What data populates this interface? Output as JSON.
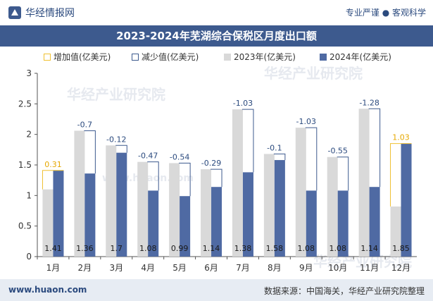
{
  "header": {
    "brand": "华经情报网",
    "tagline": "专业严谨 ● 客观科学"
  },
  "chart_data": {
    "type": "bar",
    "title": "2023-2024年芜湖综合保税区月度出口额",
    "categories": [
      "1月",
      "2月",
      "3月",
      "4月",
      "5月",
      "6月",
      "7月",
      "8月",
      "9月",
      "10月",
      "11月",
      "12月"
    ],
    "series": [
      {
        "name": "2023年(亿美元)",
        "values": [
          1.1,
          2.06,
          1.82,
          1.55,
          1.53,
          1.43,
          2.41,
          1.68,
          2.11,
          1.63,
          2.42,
          0.82
        ]
      },
      {
        "name": "2024年(亿美元)",
        "values": [
          1.41,
          1.36,
          1.7,
          1.08,
          0.99,
          1.14,
          1.38,
          1.58,
          1.08,
          1.08,
          1.14,
          1.85
        ]
      }
    ],
    "changes": [
      0.31,
      -0.7,
      -0.12,
      -0.47,
      -0.54,
      -0.29,
      -1.03,
      -0.1,
      -1.03,
      -0.55,
      -1.28,
      1.03
    ],
    "change_labels": [
      "0.31",
      "-0.7",
      "-0.12",
      "-0.47",
      "-0.54",
      "-0.29",
      "-1.03",
      "-0.1",
      "-1.03",
      "-0.55",
      "-1.28",
      "1.03"
    ],
    "value_labels_2024": [
      "1.41",
      "1.36",
      "1.7",
      "1.08",
      "0.99",
      "1.14",
      "1.38",
      "1.58",
      "1.08",
      "1.08",
      "1.14",
      "1.85"
    ],
    "legend": [
      "增加值(亿美元)",
      "减少值(亿美元)",
      "2023年(亿美元)",
      "2024年(亿美元)"
    ],
    "legend_position": "top",
    "ylim": [
      0,
      3
    ],
    "yticks": [
      "0",
      "0.5",
      "1",
      "1.5",
      "2",
      "2.5",
      "3"
    ],
    "grid": false,
    "colors": {
      "y2023": "#d9d9d9",
      "y2024": "#4f6aa3",
      "increase": "#f0c030",
      "decrease": "#3d5a8e",
      "increase_label": "#e6a800",
      "decrease_label": "#2b4a7e"
    }
  },
  "watermarks": [
    "华经产业研究院",
    "www.huaon.com"
  ],
  "footer": {
    "site": "www.huaon.com",
    "source": "数据来源：中国海关，华经产业研究院整理"
  }
}
